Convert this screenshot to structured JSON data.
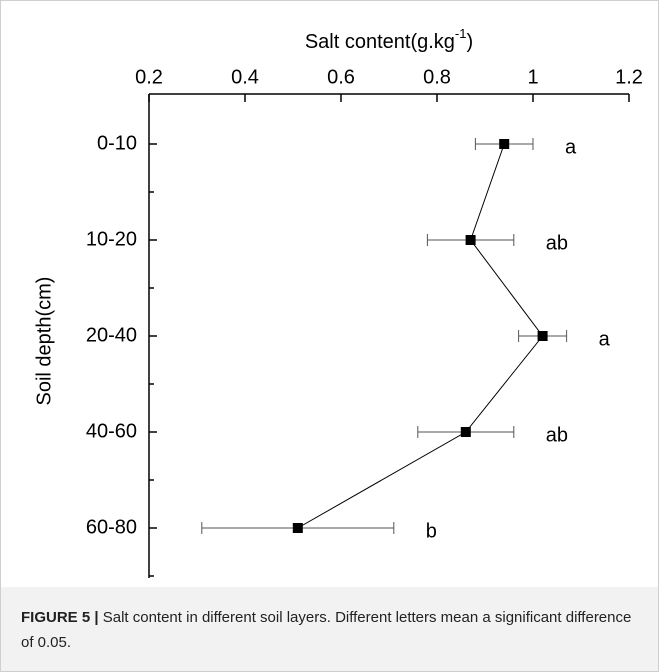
{
  "chart_data": {
    "type": "line",
    "x_label": "Salt content(g.kg",
    "x_label_sup": "-1",
    "x_label_end": ")",
    "y_label": "Soil depth(cm)",
    "categories": [
      "0-10",
      "10-20",
      "20-40",
      "40-60",
      "60-80"
    ],
    "series": [
      {
        "color": "#000000",
        "values": [
          0.94,
          0.87,
          1.02,
          0.86,
          0.51
        ],
        "errors": [
          0.06,
          0.09,
          0.05,
          0.1,
          0.2
        ],
        "labels": [
          "a",
          "ab",
          "a",
          "ab",
          "b"
        ]
      }
    ],
    "xlim": [
      0.2,
      1.2
    ],
    "xticks": [
      0.2,
      0.4,
      0.6,
      0.8,
      1.0,
      1.2
    ],
    "caption_label": "FIGURE 5 |",
    "caption": "Salt content in different soil layers. Different letters mean a significant difference of 0.05."
  }
}
